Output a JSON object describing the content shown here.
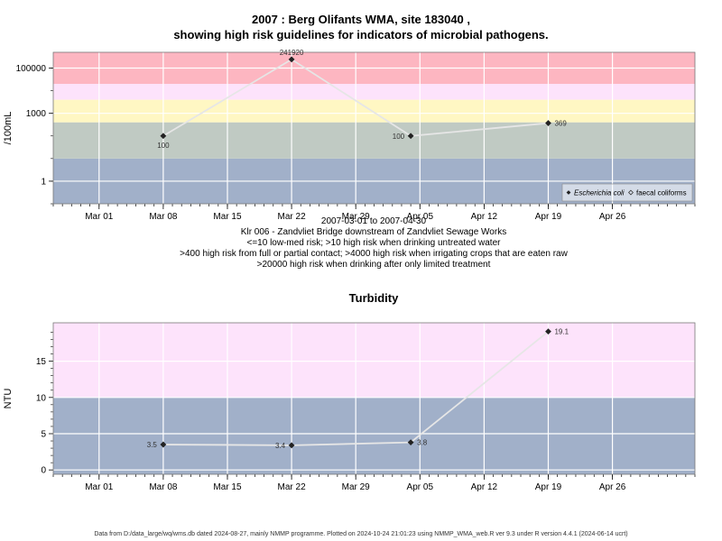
{
  "header": {
    "title_line1": "2007 : Berg Olifants WMA, site 183040 ,",
    "title_line2": "showing high risk guidelines for indicators of microbial pathogens."
  },
  "subtitle_lines": [
    "2007-03-01 to 2007-04-30",
    "Klr 006 - Zandvliet Bridge downstream of Zandvliet Sewage Works",
    "<=10 low-med risk; >10 high risk when drinking untreated water",
    ">400 high risk from full or partial contact; >4000 high risk when irrigating crops that are eaten raw",
    ">20000 high risk when drinking after only limited treatment"
  ],
  "turbidity_title": "Turbidity",
  "footer": "Data from D:/data_large/wq/wms.db dated 2024-08-27, mainly NMMP programme. Plotted on 2024-10-24 21:01:23 using NMMP_WMA_web.R ver 9.3 under R version 4.4.1 (2024-06-14 ucrt)",
  "colors": {
    "band_blue": "#a1b0c9",
    "band_green": "#c0cac3",
    "band_yellow": "#fff7c3",
    "band_pink_light": "#fde3fb",
    "band_red": "#fdb6c1",
    "line": "#e6e6e6",
    "marker": "#222222"
  },
  "chart_data": [
    {
      "type": "line",
      "ylabel": "/100mL",
      "yscale": "log",
      "ylim": [
        0.1,
        500000
      ],
      "xlim": [
        "2007-02-24",
        "2007-05-05"
      ],
      "x_ticks": [
        "Mar 01",
        "Mar 08",
        "Mar 15",
        "Mar 22",
        "Mar 29",
        "Apr 05",
        "Apr 12",
        "Apr 19",
        "Apr 26"
      ],
      "y_ticks": [
        "1",
        "1000",
        "100000"
      ],
      "grid": true,
      "legend": {
        "position": "bottom-right",
        "entries": [
          "Escherichia coli",
          "faecal coliforms"
        ]
      },
      "bands": [
        {
          "from": 0.1,
          "to": 10,
          "color": "band_blue"
        },
        {
          "from": 10,
          "to": 400,
          "color": "band_green"
        },
        {
          "from": 400,
          "to": 4000,
          "color": "band_yellow"
        },
        {
          "from": 4000,
          "to": 20000,
          "color": "band_pink_light"
        },
        {
          "from": 20000,
          "to": 500000,
          "color": "band_red"
        }
      ],
      "series": [
        {
          "name": "Escherichia coli",
          "x": [
            "2007-03-08",
            "2007-03-22",
            "2007-04-04",
            "2007-04-19"
          ],
          "values": [
            100,
            241920,
            100,
            369
          ],
          "labels": [
            "100",
            "241920",
            "100",
            "369"
          ]
        }
      ]
    },
    {
      "type": "line",
      "title": "Turbidity",
      "ylabel": "NTU",
      "ylim": [
        -0.6,
        20.3
      ],
      "xlim": [
        "2007-02-24",
        "2007-05-05"
      ],
      "x_ticks": [
        "Mar 01",
        "Mar 08",
        "Mar 15",
        "Mar 22",
        "Mar 29",
        "Apr 05",
        "Apr 12",
        "Apr 19",
        "Apr 26"
      ],
      "y_ticks": [
        "0",
        "5",
        "10",
        "15"
      ],
      "grid": true,
      "bands": [
        {
          "from": -0.6,
          "to": 10,
          "color": "band_blue"
        },
        {
          "from": 10,
          "to": 20.3,
          "color": "band_pink_light"
        }
      ],
      "series": [
        {
          "x": [
            "2007-03-08",
            "2007-03-22",
            "2007-04-04",
            "2007-04-19"
          ],
          "values": [
            3.5,
            3.4,
            3.8,
            19.1
          ],
          "labels": [
            "3.5",
            "3.4",
            "3.8",
            "19.1"
          ]
        }
      ]
    }
  ]
}
